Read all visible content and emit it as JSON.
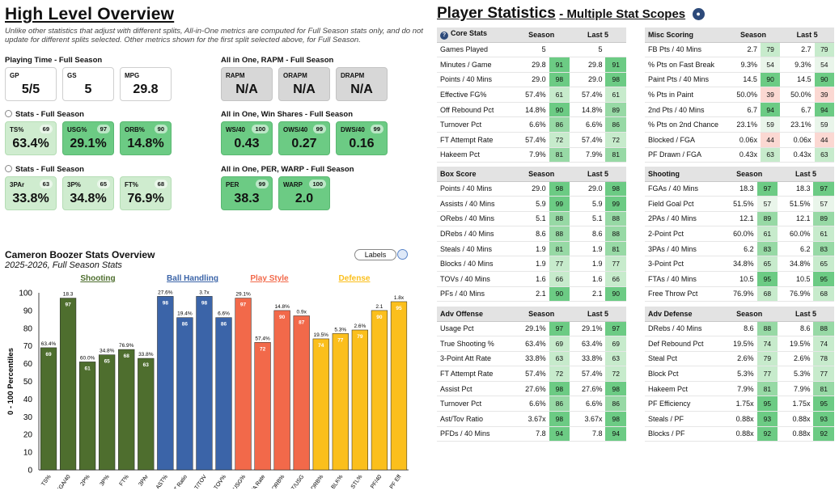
{
  "overview": {
    "title": "High Level Overview",
    "note": "Unlike other statistics that adjust with different splits, All-in-One metrics are computed for Full Season stats only, and do not update for different splits selected. Other metrics shown for the first split selected above, for Full Season."
  },
  "playing_time": {
    "label": "Playing Time - Full Season",
    "cards": [
      {
        "label": "GP",
        "value": "5/5"
      },
      {
        "label": "GS",
        "value": "5"
      },
      {
        "label": "MPG",
        "value": "29.8"
      }
    ]
  },
  "rapm": {
    "label": "All in One, RAPM - Full Season",
    "cards": [
      {
        "label": "RAPM",
        "value": "N/A"
      },
      {
        "label": "ORAPM",
        "value": "N/A"
      },
      {
        "label": "DRAPM",
        "value": "N/A"
      }
    ]
  },
  "stats1": {
    "label": "Stats - Full Season",
    "cards": [
      {
        "label": "TS%",
        "pct": "69",
        "value": "63.4%"
      },
      {
        "label": "USG%",
        "pct": "97",
        "value": "29.1%"
      },
      {
        "label": "ORB%",
        "pct": "90",
        "value": "14.8%"
      }
    ]
  },
  "winshares": {
    "label": "All in One, Win Shares - Full Season",
    "cards": [
      {
        "label": "WS/40",
        "pct": "100",
        "value": "0.43"
      },
      {
        "label": "OWS/40",
        "pct": "99",
        "value": "0.27"
      },
      {
        "label": "DWS/40",
        "pct": "99",
        "value": "0.16"
      }
    ]
  },
  "stats2": {
    "label": "Stats - Full Season",
    "cards": [
      {
        "label": "3PAr",
        "pct": "63",
        "value": "33.8%"
      },
      {
        "label": "3P%",
        "pct": "65",
        "value": "34.8%"
      },
      {
        "label": "FT%",
        "pct": "68",
        "value": "76.9%"
      }
    ]
  },
  "per": {
    "label": "All in One, PER, WARP - Full Season",
    "cards": [
      {
        "label": "PER",
        "pct": "99",
        "value": "38.3"
      },
      {
        "label": "WARP",
        "pct": "100",
        "value": "2.0"
      }
    ]
  },
  "chart_header": {
    "title": "Cameron Boozer Stats Overview",
    "subtitle": "2025-2026, Full Season Stats",
    "labels_btn": "Labels"
  },
  "chart_data": {
    "type": "bar",
    "ylabel": "0 - 100 Percentiles",
    "ylim": [
      0,
      100
    ],
    "yticks": [
      "0",
      "10",
      "20",
      "30",
      "40",
      "50",
      "60",
      "70",
      "80",
      "90",
      "100"
    ],
    "groups": [
      {
        "name": "Shooting",
        "color": "#4e6e2e",
        "label_color": "#4e6e2e"
      },
      {
        "name": "Ball Handling",
        "color": "#3b64a8",
        "label_color": "#3b64a8"
      },
      {
        "name": "Play Style",
        "color": "#f2694a",
        "label_color": "#f2694a"
      },
      {
        "name": "Defense",
        "color": "#fbbf1c",
        "label_color": "#fbbf1c"
      }
    ],
    "bars": [
      {
        "cat": "TS%",
        "value": 69,
        "label": "63.4%",
        "group": 0
      },
      {
        "cat": "FGA/40",
        "value": 97,
        "label": "18.3",
        "group": 0
      },
      {
        "cat": "2P%",
        "value": 61,
        "label": "60.0%",
        "group": 0
      },
      {
        "cat": "3P%",
        "value": 65,
        "label": "34.8%",
        "group": 0
      },
      {
        "cat": "FT%",
        "value": 68,
        "label": "76.9%",
        "group": 0
      },
      {
        "cat": "3PAr",
        "value": 63,
        "label": "33.8%",
        "group": 0
      },
      {
        "cat": "AST%",
        "value": 98,
        "label": "27.6%",
        "group": 1
      },
      {
        "cat": "AST Ratio",
        "value": 86,
        "label": "19.4%",
        "group": 1
      },
      {
        "cat": "AST/TOV",
        "value": 98,
        "label": "3.7x",
        "group": 1
      },
      {
        "cat": "TOV%",
        "value": 86,
        "label": "6.6%",
        "group": 1
      },
      {
        "cat": "USG%",
        "value": 97,
        "label": "29.1%",
        "group": 2
      },
      {
        "cat": "FTA Rate",
        "value": 72,
        "label": "57.4%",
        "group": 2
      },
      {
        "cat": "ORB%",
        "value": 90,
        "label": "14.8%",
        "group": 2
      },
      {
        "cat": "AST/USG",
        "value": 87,
        "label": "0.9x",
        "group": 2
      },
      {
        "cat": "DRB%",
        "value": 74,
        "label": "19.5%",
        "group": 3
      },
      {
        "cat": "BLK%",
        "value": 77,
        "label": "5.3%",
        "group": 3
      },
      {
        "cat": "STL%",
        "value": 79,
        "label": "2.6%",
        "group": 3
      },
      {
        "cat": "PF/40",
        "value": 90,
        "label": "2.1",
        "group": 3
      },
      {
        "cat": "PF Eff",
        "value": 95,
        "label": "1.8x",
        "group": 3
      }
    ]
  },
  "player_stats": {
    "title": "Player Statistics",
    "subtitle": "Multiple Stat Scopes",
    "col_season": "Season",
    "col_last5": "Last 5",
    "core": {
      "name": "Core Stats",
      "rows": [
        [
          "Games Played",
          "5",
          "",
          "5",
          ""
        ],
        [
          "Minutes / Game",
          "29.8",
          "91",
          "29.8",
          "91"
        ],
        [
          "Points / 40 Mins",
          "29.0",
          "98",
          "29.0",
          "98"
        ],
        [
          "Effective FG%",
          "57.4%",
          "61",
          "57.4%",
          "61"
        ],
        [
          "Off Rebound Pct",
          "14.8%",
          "90",
          "14.8%",
          "89"
        ],
        [
          "Turnover Pct",
          "6.6%",
          "86",
          "6.6%",
          "86"
        ],
        [
          "FT Attempt Rate",
          "57.4%",
          "72",
          "57.4%",
          "72"
        ],
        [
          "Hakeem Pct",
          "7.9%",
          "81",
          "7.9%",
          "81"
        ]
      ]
    },
    "misc": {
      "name": "Misc Scoring",
      "rows": [
        [
          "FB Pts / 40 Mins",
          "2.7",
          "79",
          "2.7",
          "79"
        ],
        [
          "% Pts on Fast Break",
          "9.3%",
          "54",
          "9.3%",
          "54"
        ],
        [
          "Paint Pts / 40 Mins",
          "14.5",
          "90",
          "14.5",
          "90"
        ],
        [
          "% Pts in Paint",
          "50.0%",
          "39",
          "50.0%",
          "39"
        ],
        [
          "2nd Pts / 40 Mins",
          "6.7",
          "94",
          "6.7",
          "94"
        ],
        [
          "% Pts on 2nd Chance",
          "23.1%",
          "59",
          "23.1%",
          "59"
        ],
        [
          "Blocked / FGA",
          "0.06x",
          "44",
          "0.06x",
          "44"
        ],
        [
          "PF Drawn / FGA",
          "0.43x",
          "63",
          "0.43x",
          "63"
        ]
      ]
    },
    "box": {
      "name": "Box Score",
      "rows": [
        [
          "Points / 40 Mins",
          "29.0",
          "98",
          "29.0",
          "98"
        ],
        [
          "Assists / 40 Mins",
          "5.9",
          "99",
          "5.9",
          "99"
        ],
        [
          "ORebs / 40 Mins",
          "5.1",
          "88",
          "5.1",
          "88"
        ],
        [
          "DRebs / 40 Mins",
          "8.6",
          "88",
          "8.6",
          "88"
        ],
        [
          "Steals / 40 Mins",
          "1.9",
          "81",
          "1.9",
          "81"
        ],
        [
          "Blocks / 40 Mins",
          "1.9",
          "77",
          "1.9",
          "77"
        ],
        [
          "TOVs / 40 Mins",
          "1.6",
          "66",
          "1.6",
          "66"
        ],
        [
          "PFs / 40 Mins",
          "2.1",
          "90",
          "2.1",
          "90"
        ]
      ]
    },
    "shooting": {
      "name": "Shooting",
      "rows": [
        [
          "FGAs / 40 Mins",
          "18.3",
          "97",
          "18.3",
          "97"
        ],
        [
          "Field Goal Pct",
          "51.5%",
          "57",
          "51.5%",
          "57"
        ],
        [
          "2PAs / 40 Mins",
          "12.1",
          "89",
          "12.1",
          "89"
        ],
        [
          "2-Point Pct",
          "60.0%",
          "61",
          "60.0%",
          "61"
        ],
        [
          "3PAs / 40 Mins",
          "6.2",
          "83",
          "6.2",
          "83"
        ],
        [
          "3-Point Pct",
          "34.8%",
          "65",
          "34.8%",
          "65"
        ],
        [
          "FTAs / 40 Mins",
          "10.5",
          "95",
          "10.5",
          "95"
        ],
        [
          "Free Throw Pct",
          "76.9%",
          "68",
          "76.9%",
          "68"
        ]
      ]
    },
    "advoff": {
      "name": "Adv Offense",
      "rows": [
        [
          "Usage Pct",
          "29.1%",
          "97",
          "29.1%",
          "97"
        ],
        [
          "True Shooting %",
          "63.4%",
          "69",
          "63.4%",
          "69"
        ],
        [
          "3-Point Att Rate",
          "33.8%",
          "63",
          "33.8%",
          "63"
        ],
        [
          "FT Attempt Rate",
          "57.4%",
          "72",
          "57.4%",
          "72"
        ],
        [
          "Assist Pct",
          "27.6%",
          "98",
          "27.6%",
          "98"
        ],
        [
          "Turnover Pct",
          "6.6%",
          "86",
          "6.6%",
          "86"
        ],
        [
          "Ast/Tov Ratio",
          "3.67x",
          "98",
          "3.67x",
          "98"
        ],
        [
          "PFDs / 40 Mins",
          "7.8",
          "94",
          "7.8",
          "94"
        ]
      ]
    },
    "advdef": {
      "name": "Adv Defense",
      "rows": [
        [
          "DRebs / 40 Mins",
          "8.6",
          "88",
          "8.6",
          "88"
        ],
        [
          "Def Rebound Pct",
          "19.5%",
          "74",
          "19.5%",
          "74"
        ],
        [
          "Steal Pct",
          "2.6%",
          "79",
          "2.6%",
          "78"
        ],
        [
          "Block Pct",
          "5.3%",
          "77",
          "5.3%",
          "77"
        ],
        [
          "Hakeem Pct",
          "7.9%",
          "81",
          "7.9%",
          "81"
        ],
        [
          "PF Efficiency",
          "1.75x",
          "95",
          "1.75x",
          "95"
        ],
        [
          "Steals / PF",
          "0.88x",
          "93",
          "0.88x",
          "93"
        ],
        [
          "Blocks / PF",
          "0.88x",
          "92",
          "0.88x",
          "92"
        ]
      ]
    }
  }
}
